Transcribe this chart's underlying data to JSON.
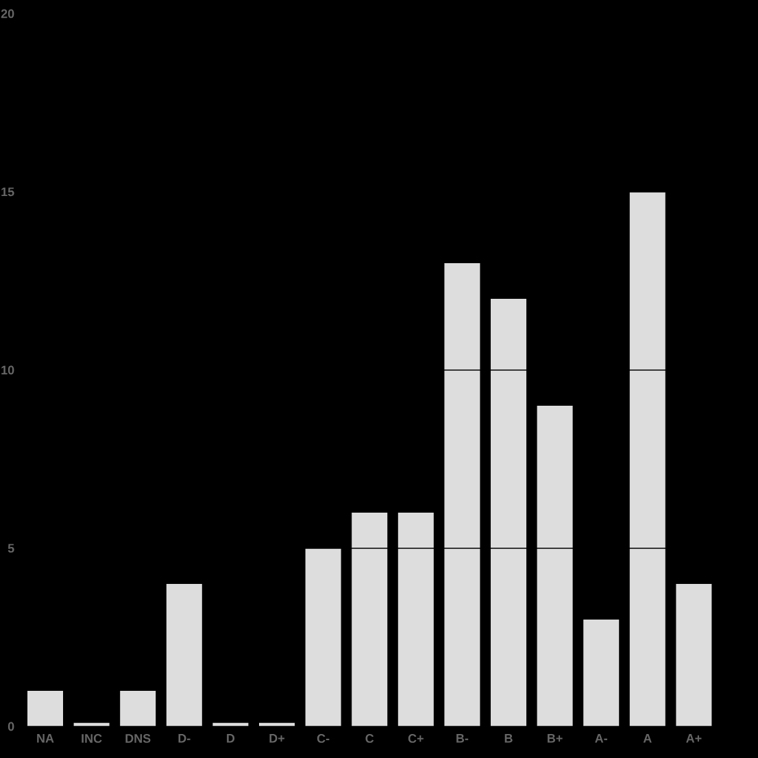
{
  "chart_data": {
    "type": "bar",
    "categories": [
      "NA",
      "INC",
      "DNS",
      "D-",
      "D",
      "D+",
      "C-",
      "C",
      "C+",
      "B-",
      "B",
      "B+",
      "A-",
      "A",
      "A+"
    ],
    "values": [
      1,
      0.1,
      1,
      4,
      0.1,
      0.1,
      5,
      6,
      6,
      13,
      12,
      9,
      3,
      15,
      4
    ],
    "color": "#dddddd",
    "ylim": [
      0,
      20
    ],
    "yticks": [
      0,
      5,
      10,
      15,
      20
    ],
    "grid": "y"
  }
}
